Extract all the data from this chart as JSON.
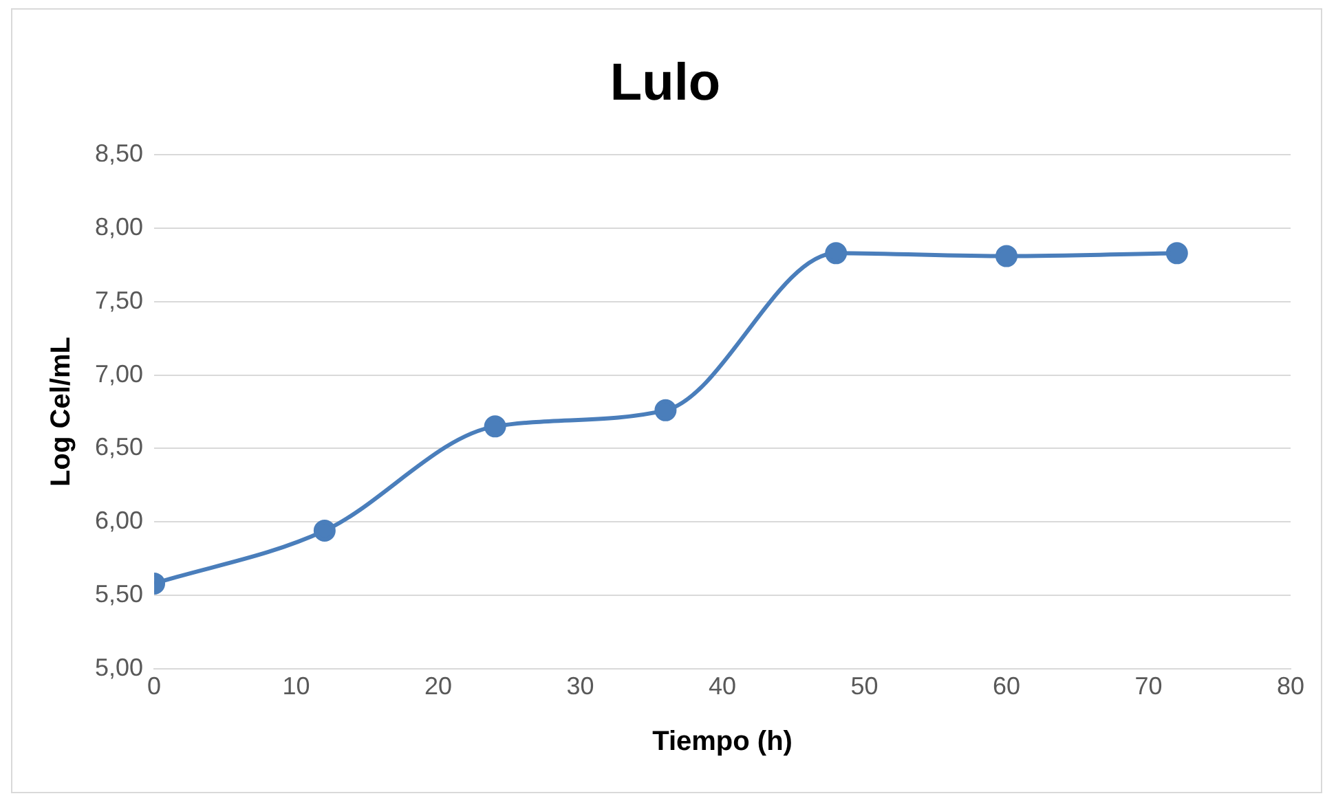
{
  "chart_data": {
    "type": "line",
    "title": "Lulo",
    "xlabel": "Tiempo (h)",
    "ylabel": "Log Cel/mL",
    "series": [
      {
        "color": "#4a7ebb",
        "x": [
          0,
          12,
          24,
          36,
          48,
          60,
          72
        ],
        "values": [
          5.58,
          5.94,
          6.65,
          6.76,
          7.83,
          7.81,
          7.83
        ]
      }
    ],
    "xlim": [
      0,
      80
    ],
    "xticks": [
      0,
      10,
      20,
      30,
      40,
      50,
      60,
      70,
      80
    ],
    "ylim": [
      5,
      8.5
    ],
    "yticks": [
      {
        "value": 5,
        "label": "5,00"
      },
      {
        "value": 5.5,
        "label": "5,50"
      },
      {
        "value": 6,
        "label": "6,00"
      },
      {
        "value": 6.5,
        "label": "6,50"
      },
      {
        "value": 7,
        "label": "7,00"
      },
      {
        "value": 7.5,
        "label": "7,50"
      },
      {
        "value": 8,
        "label": "8,00"
      },
      {
        "value": 8.5,
        "label": "8,50"
      }
    ],
    "grid": "y",
    "marker": "circle",
    "line_style": "solid",
    "legend": false
  }
}
